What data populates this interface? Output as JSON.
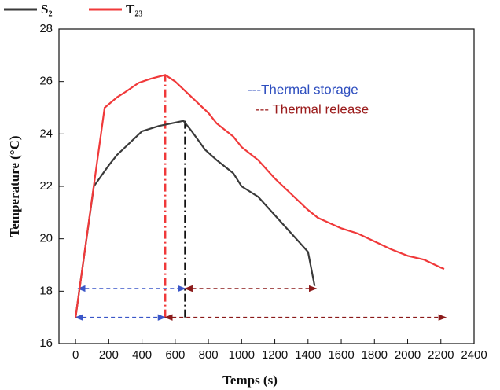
{
  "chart_data": {
    "type": "line",
    "x_label": "Temps (s)",
    "y_label": "Temperature (°C)",
    "xlim": [
      -100,
      2400
    ],
    "ylim": [
      16,
      28
    ],
    "xticks": [
      0,
      200,
      400,
      600,
      800,
      1000,
      1200,
      1400,
      1600,
      1800,
      2000,
      2200,
      2400
    ],
    "yticks": [
      16,
      18,
      20,
      22,
      24,
      26,
      28
    ],
    "series": [
      {
        "name": "S₂",
        "color": "#3a3a3a",
        "x": [
          0,
          110,
          200,
          250,
          300,
          400,
          500,
          650,
          700,
          780,
          850,
          950,
          1000,
          1100,
          1200,
          1300,
          1400,
          1440
        ],
        "values": [
          17,
          22.0,
          22.8,
          23.2,
          23.5,
          24.1,
          24.3,
          24.5,
          24.1,
          23.4,
          23.0,
          22.5,
          22.0,
          21.6,
          20.9,
          20.2,
          19.5,
          18.2
        ]
      },
      {
        "name": "T₂₃",
        "color": "#f0393a",
        "x": [
          0,
          175,
          250,
          300,
          380,
          450,
          540,
          600,
          700,
          800,
          850,
          950,
          1000,
          1100,
          1200,
          1300,
          1400,
          1460,
          1600,
          1700,
          1800,
          1900,
          2000,
          2100,
          2200,
          2220
        ],
        "values": [
          17,
          25.0,
          25.4,
          25.6,
          25.95,
          26.1,
          26.25,
          26.0,
          25.4,
          24.8,
          24.4,
          23.9,
          23.5,
          23.0,
          22.3,
          21.7,
          21.1,
          20.8,
          20.4,
          20.2,
          19.9,
          19.6,
          19.35,
          19.2,
          18.9,
          18.85
        ]
      }
    ],
    "guides": [
      {
        "x": 540,
        "y": [
          17,
          26.25
        ],
        "color": "#f0393a"
      },
      {
        "x": 660,
        "y": [
          17,
          24.5
        ],
        "color": "#111111"
      }
    ],
    "arrows": [
      {
        "y": 18.1,
        "x": [
          15,
          660
        ],
        "color": "#3a56c8"
      },
      {
        "y": 18.1,
        "x": [
          660,
          1450
        ],
        "color": "#8b1a1a"
      },
      {
        "y": 17,
        "x": [
          0,
          540
        ],
        "color": "#3a56c8"
      },
      {
        "y": 17,
        "x": [
          540,
          2230
        ],
        "color": "#8b1a1a"
      }
    ],
    "annotations": [
      {
        "text": "---Thermal storage",
        "color": "#2f4fbf"
      },
      {
        "text": "--- Thermal release",
        "color": "#9b1c1c"
      }
    ]
  }
}
